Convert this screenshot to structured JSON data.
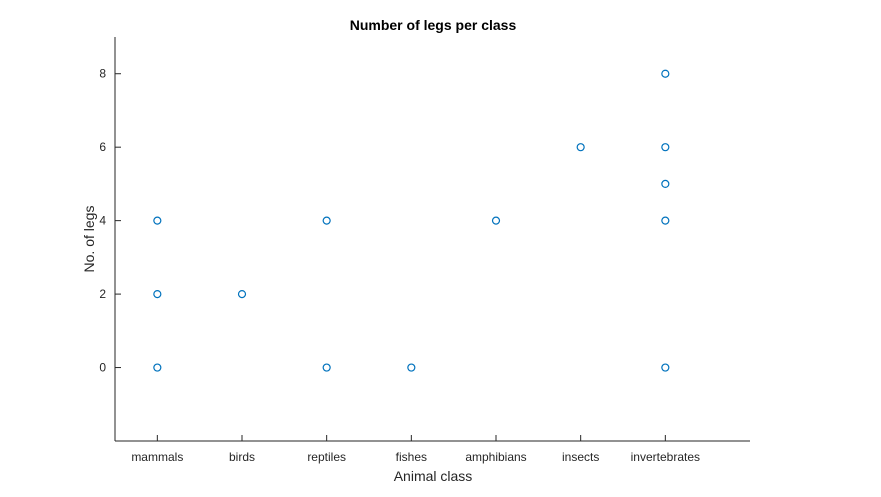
{
  "chart_data": {
    "type": "scatter",
    "title": "Number of legs per class",
    "xlabel": "Animal class",
    "ylabel": "No. of legs",
    "categories": [
      "mammals",
      "birds",
      "reptiles",
      "fishes",
      "amphibians",
      "insects",
      "invertebrates"
    ],
    "xlim": [
      0.5,
      8.0
    ],
    "ylim": [
      -2,
      9
    ],
    "yticks": [
      0,
      2,
      4,
      6,
      8
    ],
    "grid": false,
    "marker": "circle-open",
    "color": "#0072BD",
    "points": [
      {
        "category": "mammals",
        "y": 0
      },
      {
        "category": "mammals",
        "y": 2
      },
      {
        "category": "mammals",
        "y": 4
      },
      {
        "category": "birds",
        "y": 2
      },
      {
        "category": "reptiles",
        "y": 0
      },
      {
        "category": "reptiles",
        "y": 4
      },
      {
        "category": "fishes",
        "y": 0
      },
      {
        "category": "amphibians",
        "y": 4
      },
      {
        "category": "insects",
        "y": 6
      },
      {
        "category": "invertebrates",
        "y": 0
      },
      {
        "category": "invertebrates",
        "y": 4
      },
      {
        "category": "invertebrates",
        "y": 5
      },
      {
        "category": "invertebrates",
        "y": 6
      },
      {
        "category": "invertebrates",
        "y": 8
      }
    ]
  }
}
